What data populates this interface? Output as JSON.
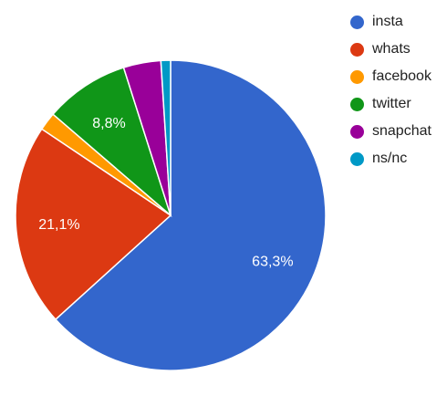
{
  "chart_data": {
    "type": "pie",
    "title": "",
    "categories": [
      "insta",
      "whats",
      "facebook",
      "twitter",
      "snapchat",
      "ns/nc"
    ],
    "values": [
      63.3,
      21.1,
      1.9,
      8.8,
      3.9,
      1.0
    ],
    "data_labels": [
      "63,3%",
      "21,1%",
      "",
      "8,8%",
      "",
      ""
    ],
    "colors": [
      "#3366CC",
      "#DC3912",
      "#FF9900",
      "#109618",
      "#990099",
      "#0099C6"
    ],
    "legend_position": "right",
    "start_angle": "top, clockwise"
  }
}
